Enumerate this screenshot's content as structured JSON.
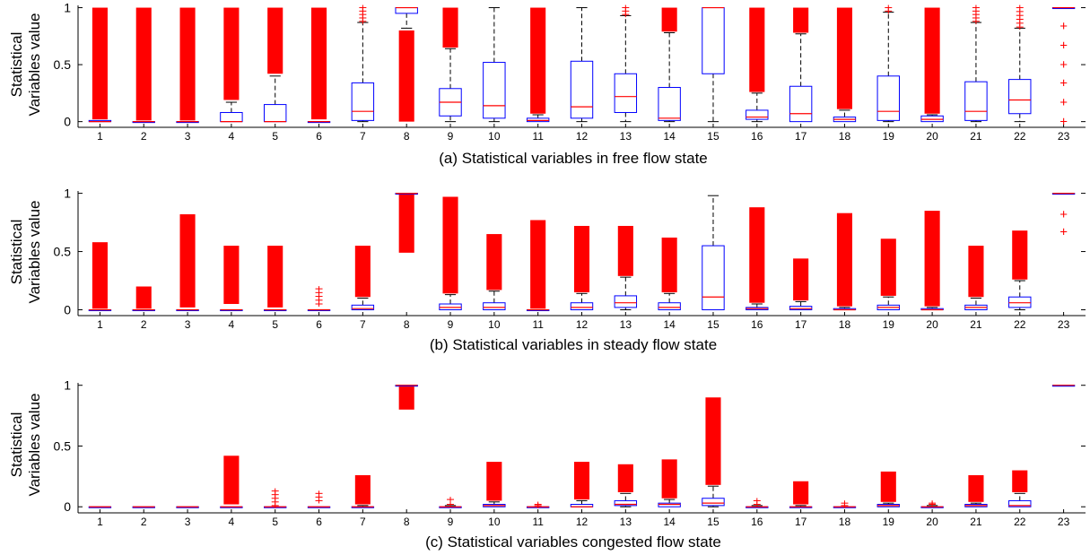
{
  "colors": {
    "box": "#0000ff",
    "median": "#ff0000",
    "whisker": "#000000",
    "outlier": "#ff0000",
    "axis": "#000000"
  },
  "shared": {
    "ylabel_line1": "Statistical",
    "ylabel_line2": "Variables value",
    "categories": [
      "1",
      "2",
      "3",
      "4",
      "5",
      "6",
      "7",
      "8",
      "9",
      "10",
      "11",
      "12",
      "13",
      "14",
      "15",
      "16",
      "17",
      "18",
      "19",
      "20",
      "21",
      "22",
      "23"
    ]
  },
  "chart_data": [
    {
      "type": "boxplot",
      "title": "(a) Statistical variables in free flow state",
      "ylabel": "Statistical Variables value",
      "ylim": [
        -0.05,
        1.02
      ],
      "yticks": [
        0,
        0.5,
        1
      ],
      "ytick_labels": [
        "0",
        "0.5",
        "1"
      ],
      "boxes": [
        {
          "x": 1,
          "q1": 0,
          "med": 0,
          "q3": 0.01,
          "wlo": 0,
          "whi": 0.01,
          "out": [
            0.02,
            1
          ]
        },
        {
          "x": 2,
          "q1": 0,
          "med": 0,
          "q3": 0,
          "wlo": 0,
          "whi": 0,
          "out": [
            0.01,
            1
          ]
        },
        {
          "x": 3,
          "q1": 0,
          "med": 0,
          "q3": 0,
          "wlo": 0,
          "whi": 0,
          "out": [
            0.01,
            1
          ]
        },
        {
          "x": 4,
          "q1": 0,
          "med": 0,
          "q3": 0.08,
          "wlo": 0,
          "whi": 0.17,
          "out": [
            0.19,
            1
          ]
        },
        {
          "x": 5,
          "q1": 0,
          "med": 0,
          "q3": 0.15,
          "wlo": 0,
          "whi": 0.4,
          "out": [
            0.42,
            1
          ]
        },
        {
          "x": 6,
          "q1": 0,
          "med": 0,
          "q3": 0,
          "wlo": 0,
          "whi": 0,
          "out": [
            0.02,
            1
          ]
        },
        {
          "x": 7,
          "q1": 0.01,
          "med": 0.09,
          "q3": 0.34,
          "wlo": 0,
          "whi": 0.87,
          "out": [
            0.88,
            1
          ]
        },
        {
          "x": 8,
          "q1": 0.95,
          "med": 1,
          "q3": 1,
          "wlo": 0.82,
          "whi": 1,
          "out": [
            0,
            0.8
          ]
        },
        {
          "x": 9,
          "q1": 0.05,
          "med": 0.17,
          "q3": 0.29,
          "wlo": 0,
          "whi": 0.64,
          "out": [
            0.65,
            1
          ]
        },
        {
          "x": 10,
          "q1": 0.03,
          "med": 0.14,
          "q3": 0.52,
          "wlo": 0,
          "whi": 1,
          "out": []
        },
        {
          "x": 11,
          "q1": 0,
          "med": 0.01,
          "q3": 0.03,
          "wlo": 0,
          "whi": 0.06,
          "out": [
            0.07,
            1
          ]
        },
        {
          "x": 12,
          "q1": 0.03,
          "med": 0.13,
          "q3": 0.53,
          "wlo": 0,
          "whi": 1,
          "out": []
        },
        {
          "x": 13,
          "q1": 0.08,
          "med": 0.22,
          "q3": 0.42,
          "wlo": 0,
          "whi": 0.93,
          "out": [
            0.94,
            1
          ]
        },
        {
          "x": 14,
          "q1": 0.01,
          "med": 0.03,
          "q3": 0.3,
          "wlo": 0,
          "whi": 0.78,
          "out": [
            0.79,
            1
          ]
        },
        {
          "x": 15,
          "q1": 0.42,
          "med": 1,
          "q3": 1,
          "wlo": 0,
          "whi": 1,
          "out": []
        },
        {
          "x": 16,
          "q1": 0.02,
          "med": 0.04,
          "q3": 0.1,
          "wlo": 0,
          "whi": 0.25,
          "out": [
            0.26,
            1
          ]
        },
        {
          "x": 17,
          "q1": 0,
          "med": 0.07,
          "q3": 0.31,
          "wlo": 0,
          "whi": 0.77,
          "out": [
            0.78,
            1
          ]
        },
        {
          "x": 18,
          "q1": 0,
          "med": 0.02,
          "q3": 0.04,
          "wlo": 0,
          "whi": 0.1,
          "out": [
            0.11,
            1
          ]
        },
        {
          "x": 19,
          "q1": 0.01,
          "med": 0.09,
          "q3": 0.4,
          "wlo": 0,
          "whi": 0.96,
          "out": [
            0.97,
            1
          ]
        },
        {
          "x": 20,
          "q1": 0,
          "med": 0.02,
          "q3": 0.05,
          "wlo": 0,
          "whi": 0.06,
          "out": [
            0.07,
            1
          ]
        },
        {
          "x": 21,
          "q1": 0.01,
          "med": 0.09,
          "q3": 0.35,
          "wlo": 0,
          "whi": 0.87,
          "out": [
            0.88,
            1
          ]
        },
        {
          "x": 22,
          "q1": 0.07,
          "med": 0.19,
          "q3": 0.37,
          "wlo": 0,
          "whi": 0.82,
          "out": [
            0.83,
            1
          ]
        },
        {
          "x": 23,
          "q1": 1,
          "med": 1,
          "q3": 1,
          "wlo": 1,
          "whi": 1,
          "out": [
            0,
            0.17,
            0.34,
            0.5,
            0.67,
            0.84
          ]
        }
      ]
    },
    {
      "type": "boxplot",
      "title": "(b) Statistical variables in steady flow state",
      "ylabel": "Statistical Variables value",
      "ylim": [
        -0.05,
        1.02
      ],
      "yticks": [
        0,
        0.5,
        1
      ],
      "ytick_labels": [
        "0",
        "0.5",
        "1"
      ],
      "boxes": [
        {
          "x": 1,
          "q1": 0,
          "med": 0,
          "q3": 0,
          "wlo": 0,
          "whi": 0,
          "out": [
            0.01,
            0.58
          ]
        },
        {
          "x": 2,
          "q1": 0,
          "med": 0,
          "q3": 0,
          "wlo": 0,
          "whi": 0,
          "out": [
            0.01,
            0.2
          ]
        },
        {
          "x": 3,
          "q1": 0,
          "med": 0,
          "q3": 0,
          "wlo": 0,
          "whi": 0,
          "out": [
            0.02,
            0.82
          ]
        },
        {
          "x": 4,
          "q1": 0,
          "med": 0,
          "q3": 0,
          "wlo": 0,
          "whi": 0,
          "out": [
            0.05,
            0.55
          ]
        },
        {
          "x": 5,
          "q1": 0,
          "med": 0,
          "q3": 0,
          "wlo": 0,
          "whi": 0,
          "out": [
            0.02,
            0.55
          ]
        },
        {
          "x": 6,
          "q1": 0,
          "med": 0,
          "q3": 0,
          "wlo": 0,
          "whi": 0,
          "out": [
            0.05,
            0.18
          ]
        },
        {
          "x": 7,
          "q1": 0,
          "med": 0.01,
          "q3": 0.04,
          "wlo": 0,
          "whi": 0.1,
          "out": [
            0.11,
            0.55
          ]
        },
        {
          "x": 8,
          "q1": 1,
          "med": 1,
          "q3": 1,
          "wlo": 1,
          "whi": 1,
          "out": [
            0.49,
            0.99
          ]
        },
        {
          "x": 9,
          "q1": 0,
          "med": 0.02,
          "q3": 0.05,
          "wlo": 0,
          "whi": 0.13,
          "out": [
            0.14,
            0.97
          ]
        },
        {
          "x": 10,
          "q1": 0,
          "med": 0.02,
          "q3": 0.06,
          "wlo": 0,
          "whi": 0.16,
          "out": [
            0.17,
            0.65
          ]
        },
        {
          "x": 11,
          "q1": 0,
          "med": 0,
          "q3": 0,
          "wlo": 0,
          "whi": 0,
          "out": [
            0.01,
            0.77
          ]
        },
        {
          "x": 12,
          "q1": 0,
          "med": 0.02,
          "q3": 0.06,
          "wlo": 0,
          "whi": 0.14,
          "out": [
            0.15,
            0.72
          ]
        },
        {
          "x": 13,
          "q1": 0.02,
          "med": 0.06,
          "q3": 0.12,
          "wlo": 0,
          "whi": 0.28,
          "out": [
            0.29,
            0.72
          ]
        },
        {
          "x": 14,
          "q1": 0,
          "med": 0.02,
          "q3": 0.06,
          "wlo": 0,
          "whi": 0.14,
          "out": [
            0.15,
            0.62
          ]
        },
        {
          "x": 15,
          "q1": 0,
          "med": 0.11,
          "q3": 0.55,
          "wlo": 0,
          "whi": 0.98,
          "out": []
        },
        {
          "x": 16,
          "q1": 0,
          "med": 0.01,
          "q3": 0.02,
          "wlo": 0,
          "whi": 0.05,
          "out": [
            0.06,
            0.88
          ]
        },
        {
          "x": 17,
          "q1": 0,
          "med": 0.01,
          "q3": 0.03,
          "wlo": 0,
          "whi": 0.07,
          "out": [
            0.08,
            0.44
          ]
        },
        {
          "x": 18,
          "q1": 0,
          "med": 0,
          "q3": 0.01,
          "wlo": 0,
          "whi": 0.02,
          "out": [
            0.03,
            0.83
          ]
        },
        {
          "x": 19,
          "q1": 0,
          "med": 0.02,
          "q3": 0.04,
          "wlo": 0,
          "whi": 0.11,
          "out": [
            0.12,
            0.61
          ]
        },
        {
          "x": 20,
          "q1": 0,
          "med": 0,
          "q3": 0.01,
          "wlo": 0,
          "whi": 0.02,
          "out": [
            0.03,
            0.85
          ]
        },
        {
          "x": 21,
          "q1": 0,
          "med": 0.02,
          "q3": 0.04,
          "wlo": 0,
          "whi": 0.1,
          "out": [
            0.11,
            0.55
          ]
        },
        {
          "x": 22,
          "q1": 0.02,
          "med": 0.06,
          "q3": 0.11,
          "wlo": 0,
          "whi": 0.25,
          "out": [
            0.26,
            0.68
          ]
        },
        {
          "x": 23,
          "q1": 1,
          "med": 1,
          "q3": 1,
          "wlo": 1,
          "whi": 1,
          "out": [
            0.67,
            0.82
          ]
        }
      ]
    },
    {
      "type": "boxplot",
      "title": "(c) Statistical variables congested flow state",
      "ylabel": "Statistical Variables value",
      "ylim": [
        -0.05,
        1.02
      ],
      "yticks": [
        0,
        0.5,
        1
      ],
      "ytick_labels": [
        "0",
        "0.5",
        "1"
      ],
      "boxes": [
        {
          "x": 1,
          "q1": 0,
          "med": 0,
          "q3": 0,
          "wlo": 0,
          "whi": 0,
          "out": []
        },
        {
          "x": 2,
          "q1": 0,
          "med": 0,
          "q3": 0,
          "wlo": 0,
          "whi": 0,
          "out": []
        },
        {
          "x": 3,
          "q1": 0,
          "med": 0,
          "q3": 0,
          "wlo": 0,
          "whi": 0,
          "out": []
        },
        {
          "x": 4,
          "q1": 0,
          "med": 0,
          "q3": 0,
          "wlo": 0,
          "whi": 0,
          "out": [
            0.02,
            0.42
          ]
        },
        {
          "x": 5,
          "q1": 0,
          "med": 0,
          "q3": 0,
          "wlo": 0,
          "whi": 0,
          "out": [
            0.01,
            0.13
          ]
        },
        {
          "x": 6,
          "q1": 0,
          "med": 0,
          "q3": 0,
          "wlo": 0,
          "whi": 0,
          "out": [
            0.05,
            0.11
          ]
        },
        {
          "x": 7,
          "q1": 0,
          "med": 0,
          "q3": 0,
          "wlo": 0,
          "whi": 0.01,
          "out": [
            0.02,
            0.26
          ]
        },
        {
          "x": 8,
          "q1": 1,
          "med": 1,
          "q3": 1,
          "wlo": 1,
          "whi": 1,
          "out": [
            0.8,
            0.99
          ]
        },
        {
          "x": 9,
          "q1": 0,
          "med": 0,
          "q3": 0,
          "wlo": 0,
          "whi": 0.01,
          "out": [
            0.02,
            0.06
          ]
        },
        {
          "x": 10,
          "q1": 0,
          "med": 0.01,
          "q3": 0.02,
          "wlo": 0,
          "whi": 0.04,
          "out": [
            0.05,
            0.37
          ]
        },
        {
          "x": 11,
          "q1": 0,
          "med": 0,
          "q3": 0,
          "wlo": 0,
          "whi": 0,
          "out": [
            0.01,
            0.02
          ]
        },
        {
          "x": 12,
          "q1": 0,
          "med": 0,
          "q3": 0.02,
          "wlo": 0,
          "whi": 0.05,
          "out": [
            0.06,
            0.37
          ]
        },
        {
          "x": 13,
          "q1": 0.01,
          "med": 0.02,
          "q3": 0.05,
          "wlo": 0,
          "whi": 0.11,
          "out": [
            0.12,
            0.35
          ]
        },
        {
          "x": 14,
          "q1": 0,
          "med": 0.02,
          "q3": 0.03,
          "wlo": 0,
          "whi": 0.06,
          "out": [
            0.07,
            0.39
          ]
        },
        {
          "x": 15,
          "q1": 0.01,
          "med": 0.03,
          "q3": 0.07,
          "wlo": 0,
          "whi": 0.17,
          "out": [
            0.18,
            0.9
          ]
        },
        {
          "x": 16,
          "q1": 0,
          "med": 0,
          "q3": 0,
          "wlo": 0,
          "whi": 0.01,
          "out": [
            0.02,
            0.05
          ]
        },
        {
          "x": 17,
          "q1": 0,
          "med": 0,
          "q3": 0,
          "wlo": 0,
          "whi": 0.01,
          "out": [
            0.02,
            0.21
          ]
        },
        {
          "x": 18,
          "q1": 0,
          "med": 0,
          "q3": 0,
          "wlo": 0,
          "whi": 0,
          "out": [
            0.01,
            0.03
          ]
        },
        {
          "x": 19,
          "q1": 0,
          "med": 0.01,
          "q3": 0.02,
          "wlo": 0,
          "whi": 0.03,
          "out": [
            0.04,
            0.29
          ]
        },
        {
          "x": 20,
          "q1": 0,
          "med": 0,
          "q3": 0,
          "wlo": 0,
          "whi": 0.01,
          "out": [
            0.02,
            0.03
          ]
        },
        {
          "x": 21,
          "q1": 0,
          "med": 0.01,
          "q3": 0.02,
          "wlo": 0,
          "whi": 0.03,
          "out": [
            0.04,
            0.26
          ]
        },
        {
          "x": 22,
          "q1": 0,
          "med": 0.01,
          "q3": 0.05,
          "wlo": 0,
          "whi": 0.11,
          "out": [
            0.12,
            0.3
          ]
        },
        {
          "x": 23,
          "q1": 1,
          "med": 1,
          "q3": 1,
          "wlo": 1,
          "whi": 1,
          "out": []
        }
      ]
    }
  ]
}
